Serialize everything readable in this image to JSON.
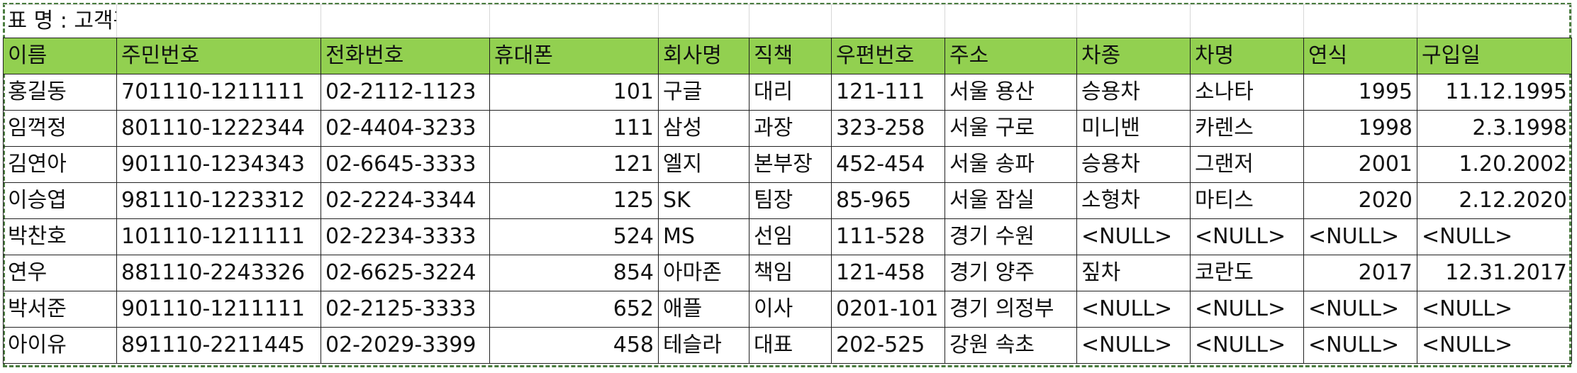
{
  "sheet": {
    "title": "표 명 : 고객관리",
    "columns": [
      "이름",
      "주민번호",
      "전화번호",
      "휴대폰",
      "회사명",
      "직책",
      "우편번호",
      "주소",
      "차종",
      "차명",
      "연식",
      "구입일"
    ],
    "rows": [
      [
        "홍길동",
        "701110-1211111",
        "02-2112-1123",
        "101",
        "구글",
        "대리",
        "121-111",
        "서울 용산",
        "승용차",
        "소나타",
        "1995",
        "11.12.1995"
      ],
      [
        "임꺽정",
        "801110-1222344",
        "02-4404-3233",
        "111",
        "삼성",
        "과장",
        "323-258",
        "서울 구로",
        "미니밴",
        "카렌스",
        "1998",
        "2.3.1998"
      ],
      [
        "김연아",
        "901110-1234343",
        "02-6645-3333",
        "121",
        "엘지",
        "본부장",
        "452-454",
        "서울 송파",
        "승용차",
        "그랜저",
        "2001",
        "1.20.2002"
      ],
      [
        "이승엽",
        "981110-1223312",
        "02-2224-3344",
        "125",
        "SK",
        "팀장",
        "85-965",
        "서울 잠실",
        "소형차",
        "마티스",
        "2020",
        "2.12.2020"
      ],
      [
        "박찬호",
        "101110-1211111",
        "02-2234-3333",
        "524",
        "MS",
        "선임",
        "111-528",
        "경기 수원",
        "<NULL>",
        "<NULL>",
        "<NULL>",
        "<NULL>"
      ],
      [
        "연우",
        "881110-2243326",
        "02-6625-3224",
        "854",
        "아마존",
        "책임",
        "121-458",
        "경기 양주",
        "짚차",
        "코란도",
        "2017",
        "12.31.2017"
      ],
      [
        "박서준",
        "901110-1211111",
        "02-2125-3333",
        "652",
        "애플",
        "이사",
        "0201-101",
        "경기 의정부",
        "<NULL>",
        "<NULL>",
        "<NULL>",
        "<NULL>"
      ],
      [
        "아이유",
        "891110-2211445",
        "02-2029-3399",
        "458",
        "테슬라",
        "대표",
        "202-525",
        "강원 속초",
        "<NULL>",
        "<NULL>",
        "<NULL>",
        "<NULL>"
      ]
    ],
    "header_color": "#92d050",
    "frame_color": "#4a7c3f"
  }
}
